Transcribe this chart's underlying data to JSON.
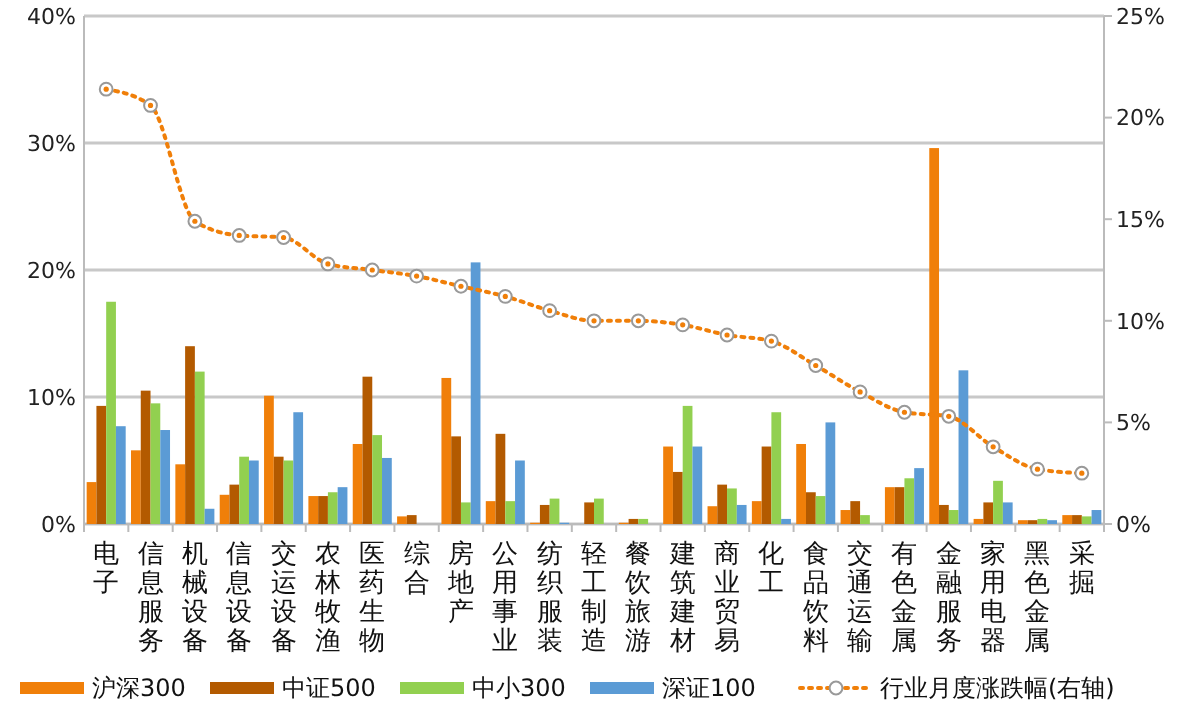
{
  "chart_data": {
    "type": "bar",
    "categories": [
      "电子",
      "信息服务",
      "机械设备",
      "信息设备",
      "交运设备",
      "农林牧渔",
      "医药生物",
      "综合",
      "房地产",
      "公用事业",
      "纺织服装",
      "轻工制造",
      "餐饮旅游",
      "建筑建材",
      "商业贸易",
      "化工",
      "食品饮料",
      "交通运输",
      "有色金属",
      "金融服务",
      "家用电器",
      "黑色金属",
      "采掘"
    ],
    "series": [
      {
        "name": "沪深300",
        "color": "#f07f09",
        "values": [
          3.3,
          5.8,
          4.7,
          2.3,
          10.1,
          2.2,
          6.3,
          0.6,
          11.5,
          1.8,
          0.1,
          0,
          0.1,
          6.1,
          1.4,
          1.8,
          6.3,
          1.1,
          2.9,
          29.6,
          0.4,
          0.3,
          0.7
        ]
      },
      {
        "name": "中证500",
        "color": "#b35a00",
        "values": [
          9.3,
          10.5,
          14.0,
          3.1,
          5.3,
          2.2,
          11.6,
          0.7,
          6.9,
          7.1,
          1.5,
          1.7,
          0.4,
          4.1,
          3.1,
          6.1,
          2.5,
          1.8,
          2.9,
          1.5,
          1.7,
          0.3,
          0.7
        ]
      },
      {
        "name": "中小300",
        "color": "#92d050",
        "values": [
          17.5,
          9.5,
          12.0,
          5.3,
          5.0,
          2.5,
          7.0,
          0,
          1.7,
          1.8,
          2.0,
          2.0,
          0.4,
          9.3,
          2.8,
          8.8,
          2.2,
          0.7,
          3.6,
          1.1,
          3.4,
          0.4,
          0.6
        ]
      },
      {
        "name": "深证100",
        "color": "#5b9bd5",
        "values": [
          7.7,
          7.4,
          1.2,
          5.0,
          8.8,
          2.9,
          5.2,
          0,
          20.6,
          5.0,
          0.1,
          0,
          0,
          6.1,
          1.5,
          0.4,
          8.0,
          0,
          4.4,
          12.1,
          1.7,
          0.3,
          1.1
        ]
      },
      {
        "name": "行业月度涨跌幅(右轴)",
        "type": "line",
        "axis": "y2",
        "color": "#f07f09",
        "marker": "circle",
        "line_style": "dotted",
        "values": [
          21.4,
          20.6,
          14.9,
          14.2,
          14.1,
          12.8,
          12.5,
          12.2,
          11.7,
          11.2,
          10.5,
          10.0,
          10.0,
          9.8,
          9.3,
          9.0,
          7.8,
          6.5,
          5.5,
          5.3,
          3.8,
          2.7,
          2.5
        ]
      }
    ],
    "ylim": [
      0,
      40
    ],
    "yticks": [
      {
        "value": 0,
        "label": "0%"
      },
      {
        "value": 10,
        "label": "10%"
      },
      {
        "value": 20,
        "label": "20%"
      },
      {
        "value": 30,
        "label": "30%"
      },
      {
        "value": 40,
        "label": "40%"
      }
    ],
    "y2lim": [
      0,
      25
    ],
    "y2ticks": [
      {
        "value": 0,
        "label": "0%"
      },
      {
        "value": 5,
        "label": "5%"
      },
      {
        "value": 10,
        "label": "10%"
      },
      {
        "value": 15,
        "label": "15%"
      },
      {
        "value": 20,
        "label": "20%"
      },
      {
        "value": 25,
        "label": "25%"
      }
    ],
    "grid": "y",
    "legend": "bottom"
  }
}
